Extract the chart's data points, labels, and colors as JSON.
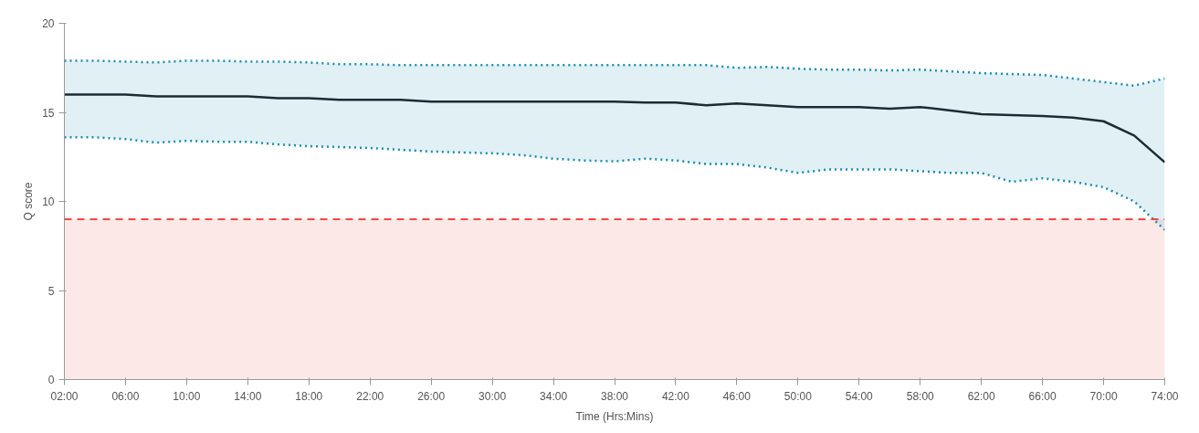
{
  "chart_data": {
    "type": "line",
    "xlabel": "Time (Hrs:Mins)",
    "ylabel": "Q score",
    "x": [
      2,
      4,
      6,
      8,
      10,
      12,
      14,
      16,
      18,
      20,
      22,
      24,
      26,
      28,
      30,
      32,
      34,
      36,
      38,
      40,
      42,
      44,
      46,
      48,
      50,
      52,
      54,
      56,
      58,
      60,
      62,
      64,
      66,
      68,
      70,
      72,
      74
    ],
    "series": [
      {
        "color": "#1d2b33",
        "line_style": "solid",
        "values": [
          16.0,
          16.0,
          16.0,
          15.9,
          15.9,
          15.9,
          15.9,
          15.8,
          15.8,
          15.7,
          15.7,
          15.7,
          15.6,
          15.6,
          15.6,
          15.6,
          15.6,
          15.6,
          15.6,
          15.55,
          15.55,
          15.4,
          15.5,
          15.4,
          15.3,
          15.3,
          15.3,
          15.2,
          15.3,
          15.1,
          14.9,
          14.85,
          14.8,
          14.7,
          14.5,
          13.7,
          12.2
        ],
        "upper": [
          17.9,
          17.9,
          17.85,
          17.8,
          17.9,
          17.9,
          17.85,
          17.85,
          17.8,
          17.7,
          17.7,
          17.65,
          17.65,
          17.65,
          17.65,
          17.65,
          17.65,
          17.65,
          17.65,
          17.65,
          17.65,
          17.65,
          17.5,
          17.55,
          17.45,
          17.4,
          17.4,
          17.35,
          17.4,
          17.3,
          17.2,
          17.15,
          17.1,
          16.9,
          16.7,
          16.5,
          16.9
        ],
        "lower": [
          13.6,
          13.6,
          13.5,
          13.3,
          13.4,
          13.35,
          13.35,
          13.2,
          13.1,
          13.05,
          13.0,
          12.9,
          12.8,
          12.75,
          12.7,
          12.6,
          12.4,
          12.3,
          12.25,
          12.4,
          12.3,
          12.1,
          12.1,
          11.9,
          11.6,
          11.8,
          11.8,
          11.8,
          11.7,
          11.6,
          11.6,
          11.1,
          11.3,
          11.1,
          10.8,
          10.0,
          8.4
        ]
      },
      {
        "color": "#1a8db0",
        "line_style": "dotted",
        "values": [
          17.9,
          17.9,
          17.85,
          17.8,
          17.9,
          17.9,
          17.85,
          17.85,
          17.8,
          17.7,
          17.7,
          17.65,
          17.65,
          17.65,
          17.65,
          17.65,
          17.65,
          17.65,
          17.65,
          17.65,
          17.65,
          17.65,
          17.5,
          17.55,
          17.45,
          17.4,
          17.4,
          17.35,
          17.4,
          17.3,
          17.2,
          17.15,
          17.1,
          16.9,
          16.7,
          16.5,
          16.9
        ]
      },
      {
        "color": "#1a8db0",
        "line_style": "dotted",
        "values": [
          13.6,
          13.6,
          13.5,
          13.3,
          13.4,
          13.35,
          13.35,
          13.2,
          13.1,
          13.05,
          13.0,
          12.9,
          12.8,
          12.75,
          12.7,
          12.6,
          12.4,
          12.3,
          12.25,
          12.4,
          12.3,
          12.1,
          12.1,
          11.9,
          11.6,
          11.8,
          11.8,
          11.8,
          11.7,
          11.6,
          11.6,
          11.1,
          11.3,
          11.1,
          10.8,
          10.0,
          8.4
        ]
      }
    ],
    "ref_lines": [
      {
        "axis": "y",
        "value": 9,
        "color": "#f04a3e",
        "line_style": "dashed"
      }
    ],
    "bands": [
      {
        "axis": "y",
        "from": 0,
        "to": 9,
        "color": "#fde8e8"
      }
    ],
    "xlim": [
      2,
      74
    ],
    "xticks": [
      {
        "value": 2,
        "label": "02:00"
      },
      {
        "value": 6,
        "label": "06:00"
      },
      {
        "value": 10,
        "label": "10:00"
      },
      {
        "value": 14,
        "label": "14:00"
      },
      {
        "value": 18,
        "label": "18:00"
      },
      {
        "value": 22,
        "label": "22:00"
      },
      {
        "value": 26,
        "label": "26:00"
      },
      {
        "value": 30,
        "label": "30:00"
      },
      {
        "value": 34,
        "label": "34:00"
      },
      {
        "value": 38,
        "label": "38:00"
      },
      {
        "value": 42,
        "label": "42:00"
      },
      {
        "value": 46,
        "label": "46:00"
      },
      {
        "value": 50,
        "label": "50:00"
      },
      {
        "value": 54,
        "label": "54:00"
      },
      {
        "value": 58,
        "label": "58:00"
      },
      {
        "value": 62,
        "label": "62:00"
      },
      {
        "value": 66,
        "label": "66:00"
      },
      {
        "value": 70,
        "label": "70:00"
      },
      {
        "value": 74,
        "label": "74:00"
      }
    ],
    "ylim": [
      0,
      20
    ],
    "yticks": [
      0,
      5,
      10,
      15,
      20
    ],
    "grid": false,
    "marker": "none"
  }
}
